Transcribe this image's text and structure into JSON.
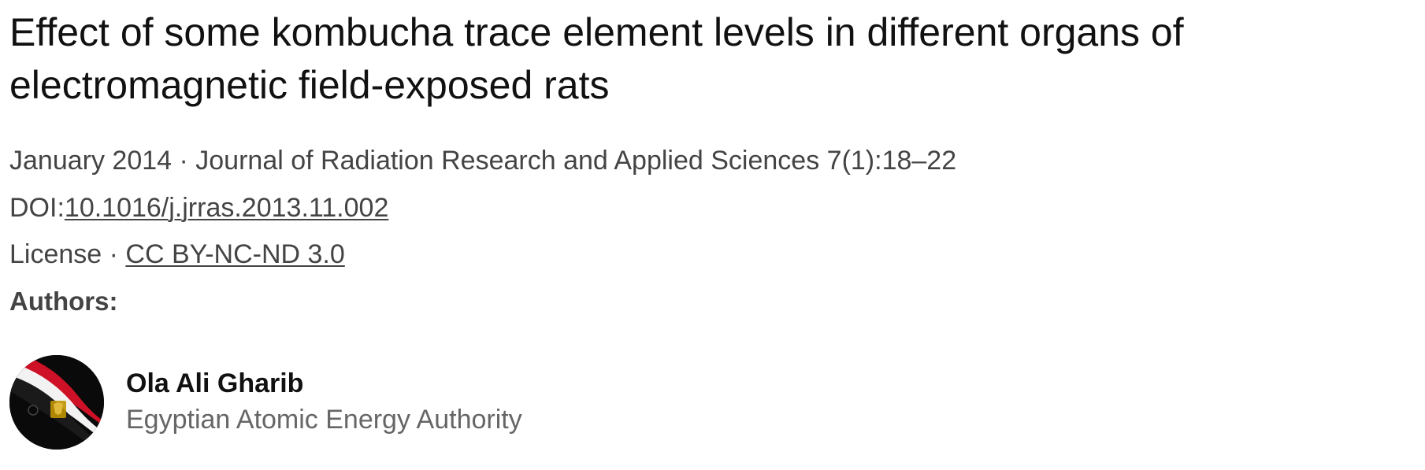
{
  "publication": {
    "title": "Effect of some kombucha trace element levels in different organs of electromagnetic field-exposed rats",
    "date": "January 2014",
    "separator": " · ",
    "journal": "Journal of Radiation Research and Applied Sciences 7(1):18–22",
    "doi_label": "DOI:",
    "doi": "10.1016/j.jrras.2013.11.002",
    "license_label": "License",
    "license": "CC BY-NC-ND 3.0"
  },
  "authors_heading": "Authors:",
  "authors": [
    {
      "name": "Ola Ali Gharib",
      "affiliation": "Egyptian Atomic Energy Authority",
      "avatar_icon": "egypt-flag-avatar-icon"
    }
  ],
  "colors": {
    "title": "#111111",
    "meta": "#444444",
    "affiliation": "#666666",
    "flag_red": "#ce1126",
    "flag_white": "#ffffff",
    "flag_black": "#000000",
    "flag_gold": "#c09300"
  }
}
